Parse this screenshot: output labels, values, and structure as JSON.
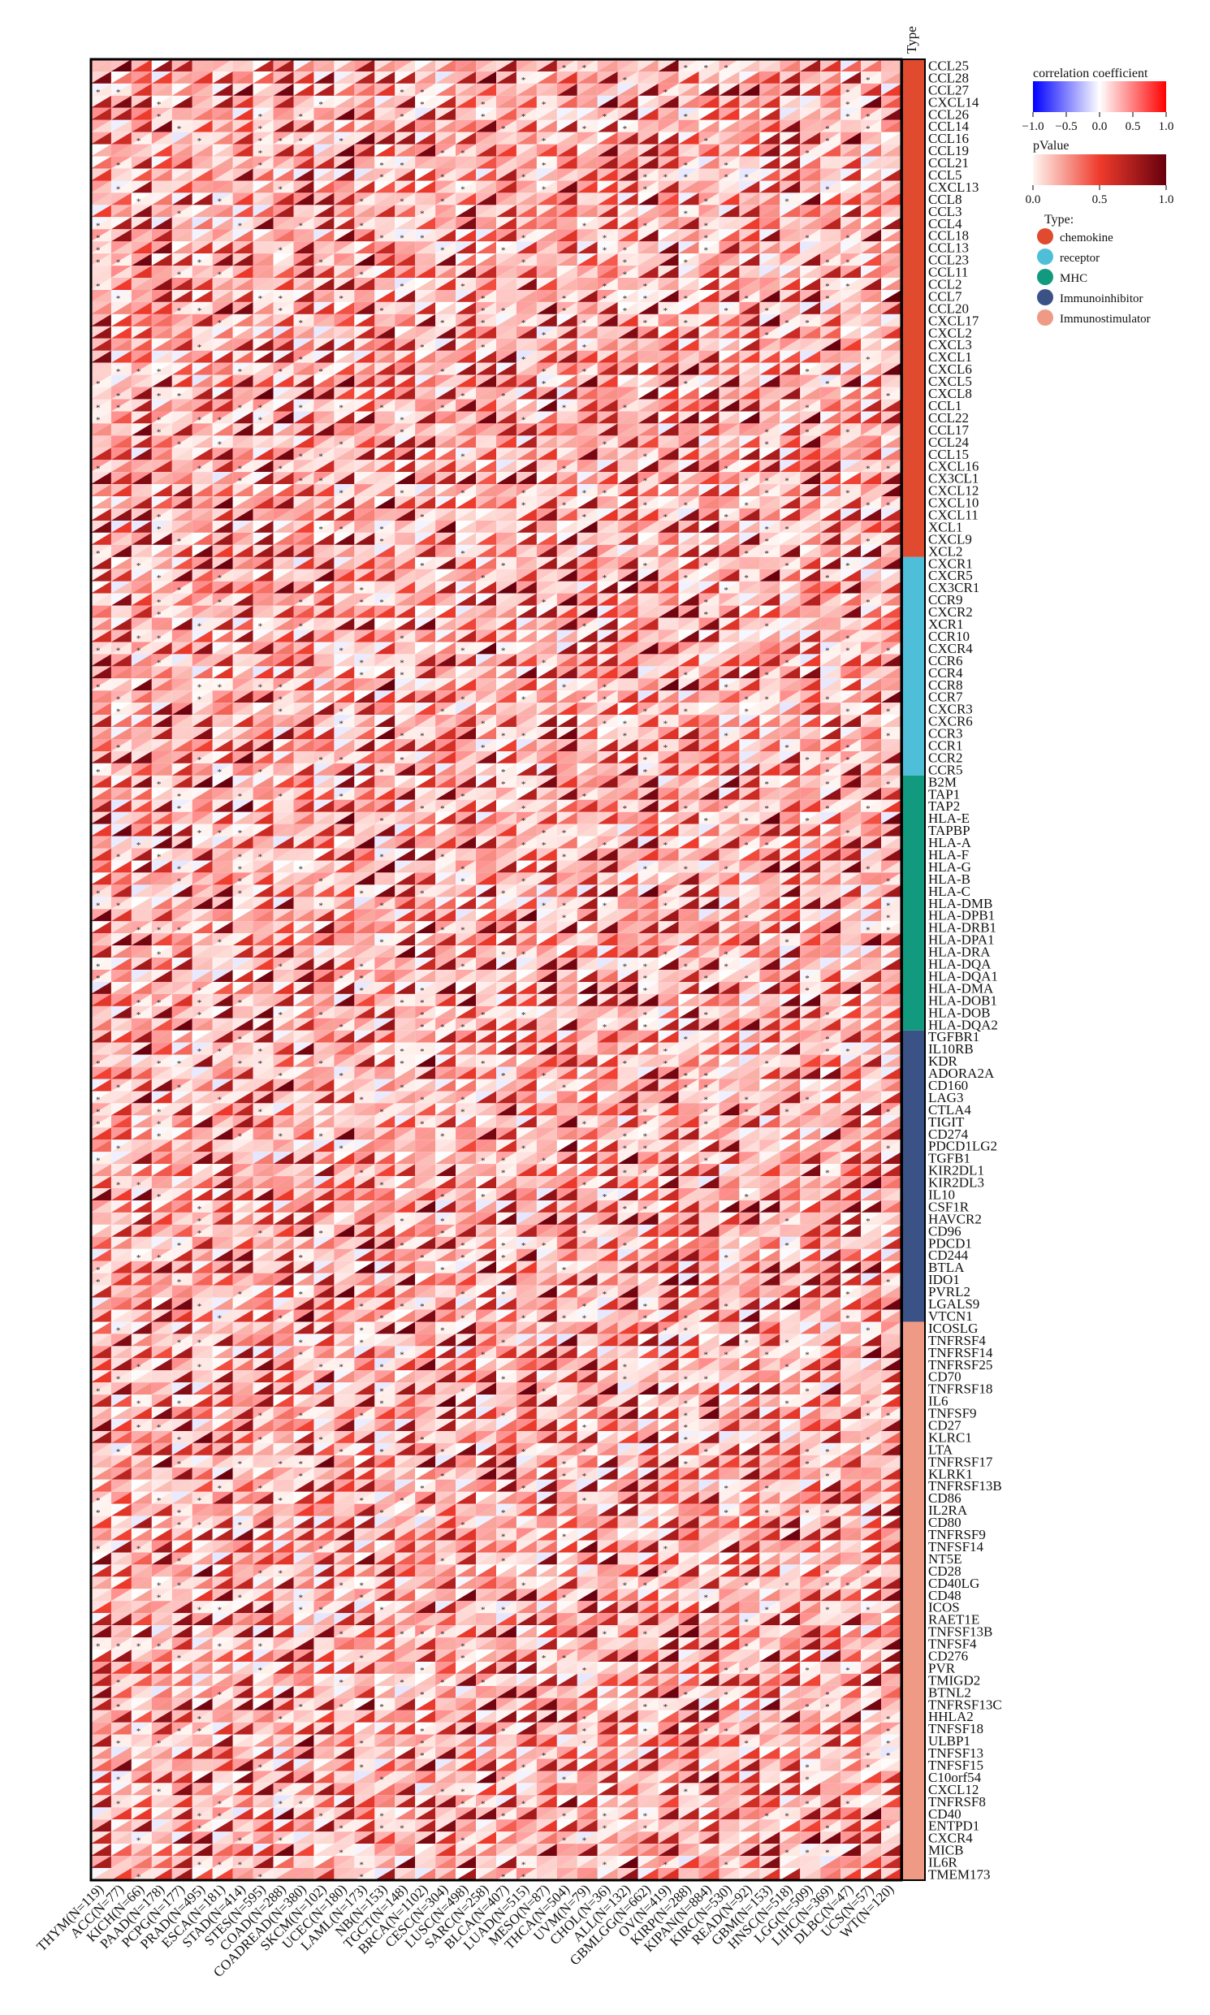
{
  "chart_data": {
    "type": "heatmap",
    "description_of_marks": "Each cell is split diagonally: upper-left triangle colored by correlation coefficient, lower-right triangle colored by pValue; asterisk marks significant cells.",
    "columns": [
      "THYM(N=119)",
      "ACC(N=77)",
      "KICH(N=66)",
      "PAAD(N=178)",
      "PCPG(N=177)",
      "PRAD(N=495)",
      "ESCA(N=181)",
      "STAD(N=414)",
      "STES(N=595)",
      "COAD(N=288)",
      "COADREAD(N=380)",
      "SKCM(N=102)",
      "UCEC(N=180)",
      "LAML(N=173)",
      "NB(N=153)",
      "TGCT(N=148)",
      "BRCA(N=1102)",
      "CESC(N=304)",
      "LUSC(N=498)",
      "SARC(N=258)",
      "BLCA(N=407)",
      "LUAD(N=515)",
      "MESO(N=87)",
      "THCA(N=504)",
      "UVM(N=79)",
      "CHOL(N=36)",
      "ALL(N=132)",
      "GBMLGG(N=662)",
      "OV(N=419)",
      "KIRP(N=288)",
      "KIPAN(N=884)",
      "KIRC(N=530)",
      "READ(N=92)",
      "GBM(N=153)",
      "HNSC(N=518)",
      "LGG(N=509)",
      "LIHC(N=369)",
      "DLBC(N=47)",
      "UCS(N=57)",
      "WT(N=120)"
    ],
    "rows": [
      "CCL25",
      "CCL28",
      "CCL27",
      "CXCL14",
      "CCL26",
      "CCL14",
      "CCL16",
      "CCL19",
      "CCL21",
      "CCL5",
      "CXCL13",
      "CCL8",
      "CCL3",
      "CCL4",
      "CCL18",
      "CCL13",
      "CCL23",
      "CCL11",
      "CCL2",
      "CCL7",
      "CCL20",
      "CXCL17",
      "CXCL2",
      "CXCL3",
      "CXCL1",
      "CXCL6",
      "CXCL5",
      "CXCL8",
      "CCL1",
      "CCL22",
      "CCL17",
      "CCL24",
      "CCL15",
      "CXCL16",
      "CX3CL1",
      "CXCL12",
      "CXCL10",
      "CXCL11",
      "XCL1",
      "CXCL9",
      "XCL2",
      "CXCR1",
      "CXCR5",
      "CX3CR1",
      "CCR9",
      "CXCR2",
      "XCR1",
      "CCR10",
      "CXCR4",
      "CCR6",
      "CCR4",
      "CCR8",
      "CCR7",
      "CXCR3",
      "CXCR6",
      "CCR3",
      "CCR1",
      "CCR2",
      "CCR5",
      "B2M",
      "TAP1",
      "TAP2",
      "HLA-E",
      "TAPBP",
      "HLA-A",
      "HLA-F",
      "HLA-G",
      "HLA-B",
      "HLA-C",
      "HLA-DMB",
      "HLA-DPB1",
      "HLA-DRB1",
      "HLA-DPA1",
      "HLA-DRA",
      "HLA-DQA",
      "HLA-DQA1",
      "HLA-DMA",
      "HLA-DOB1",
      "HLA-DOB",
      "HLA-DQA2",
      "TGFBR1",
      "IL10RB",
      "KDR",
      "ADORA2A",
      "CD160",
      "LAG3",
      "CTLA4",
      "TIGIT",
      "CD274",
      "PDCD1LG2",
      "TGFB1",
      "KIR2DL1",
      "KIR2DL3",
      "IL10",
      "CSF1R",
      "HAVCR2",
      "CD96",
      "PDCD1",
      "CD244",
      "BTLA",
      "IDO1",
      "PVRL2",
      "LGALS9",
      "VTCN1",
      "ICOSLG",
      "TNFRSF4",
      "TNFRSF14",
      "TNFRSF25",
      "CD70",
      "TNFRSF18",
      "IL6",
      "TNFSF9",
      "CD27",
      "KLRC1",
      "LTA",
      "TNFRSF17",
      "KLRK1",
      "TNFRSF13B",
      "CD86",
      "IL2RA",
      "CD80",
      "TNFRSF9",
      "TNFSF14",
      "NT5E",
      "CD28",
      "CD40LG",
      "CD48",
      "ICOS",
      "RAET1E",
      "TNFSF13B",
      "TNFSF4",
      "CD276",
      "PVR",
      "TMIGD2",
      "BTNL2",
      "TNFRSF13C",
      "HHLA2",
      "TNFSF18",
      "ULBP1",
      "TNFSF13",
      "TNFSF15",
      "C10orf54",
      "CXCL12",
      "TNFRSF8",
      "CD40",
      "ENTPD1",
      "CXCR4",
      "MICB",
      "IL6R",
      "TMEM173"
    ],
    "type_annotation": {
      "title": "Type",
      "groups": [
        {
          "name": "chemokine",
          "color": "#e04a2f",
          "count": 41
        },
        {
          "name": "receptor",
          "color": "#4fbfd9",
          "count": 18
        },
        {
          "name": "MHC",
          "color": "#119a7d",
          "count": 21
        },
        {
          "name": "Immunoinhibitor",
          "color": "#3b5287",
          "count": 24
        },
        {
          "name": "Immunostimulator",
          "color": "#ee9a84",
          "count": 46
        }
      ]
    },
    "correlation_legend": {
      "title": "correlation coefficient",
      "ticks": [
        "−1.0",
        "−0.5",
        "0.0",
        "0.5",
        "1.0"
      ],
      "range": [
        -1,
        1
      ],
      "colors": [
        "#0000ff",
        "#ffffff",
        "#ff0000"
      ]
    },
    "pvalue_legend": {
      "title": "pValue",
      "ticks": [
        "0.0",
        "0.5",
        "1.0"
      ],
      "range": [
        0,
        1
      ],
      "colors": [
        "#fff5f0",
        "#ef3b2c",
        "#67000d"
      ]
    },
    "type_legend_title": "Type:",
    "significance_mark": "*"
  }
}
